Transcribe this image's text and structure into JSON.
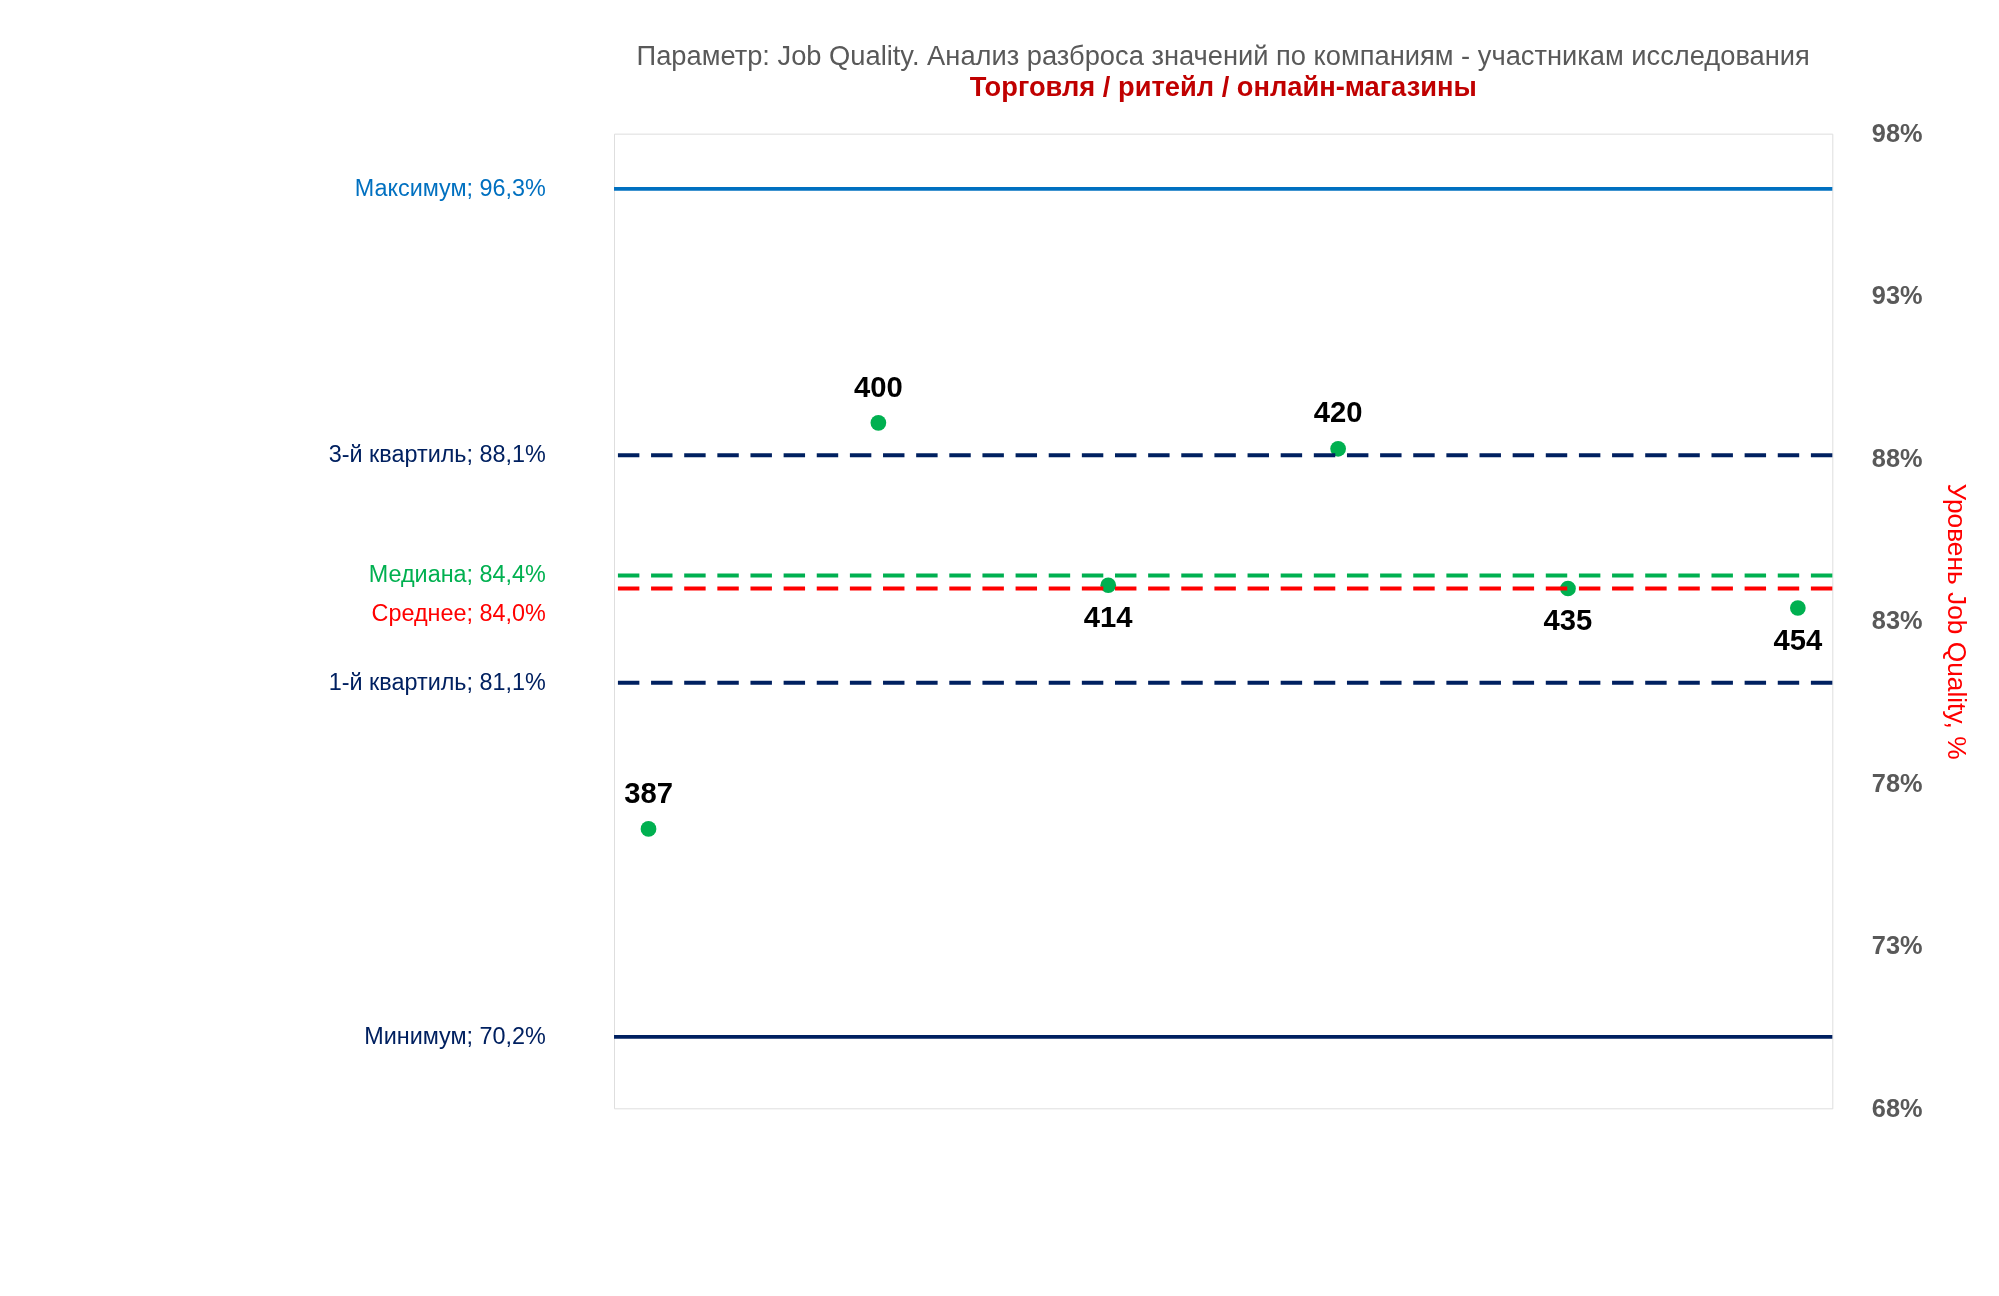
{
  "chart_data": {
    "type": "scatter",
    "title": "Параметр: Job Quality. Анализ разброса значений по компаниям - участникам исследования",
    "subtitle": "Торговля / ритейл / онлайн-магазины",
    "y2label": "Уровень Job Quality, %",
    "categories": [
      null,
      null,
      null,
      null,
      null,
      null
    ],
    "series": [
      {
        "color": "#00b050",
        "axis": "y2",
        "values": [
          76.6,
          89.1,
          84.1,
          88.3,
          84.0,
          83.4
        ]
      }
    ],
    "annotations": [
      "387",
      "400",
      "414",
      "420",
      "435",
      "454"
    ],
    "y2lim": [
      68,
      98
    ],
    "y2ticks": [
      {
        "value": 68,
        "label": "68%"
      },
      {
        "value": 73,
        "label": "73%"
      },
      {
        "value": 78,
        "label": "78%"
      },
      {
        "value": 83,
        "label": "83%"
      },
      {
        "value": 88,
        "label": "88%"
      },
      {
        "value": 93,
        "label": "93%"
      },
      {
        "value": 98,
        "label": "98%"
      }
    ],
    "ref_lines": [
      {
        "axis": "y2",
        "value": 96.3,
        "label": "Максимум;  96,3%",
        "color": "#0070c0",
        "line_style": "solid"
      },
      {
        "axis": "y2",
        "value": 88.1,
        "label": "3-й квартиль;  88,1%",
        "color": "#002060",
        "line_style": "dashed"
      },
      {
        "axis": "y2",
        "value": 84.4,
        "label": "Медиана; 84,4%",
        "color": "#00b050",
        "line_style": "dashed"
      },
      {
        "axis": "y2",
        "value": 84.0,
        "label": "Среднее;  84,0%",
        "color": "#ff0000",
        "line_style": "dashed"
      },
      {
        "axis": "y2",
        "value": 81.1,
        "label": "1-й квартиль;  81,1%",
        "color": "#002060",
        "line_style": "dashed"
      },
      {
        "axis": "y2",
        "value": 70.2,
        "label": "Минимум;  70,2%",
        "color": "#002060",
        "line_style": "solid"
      }
    ],
    "tick_labels": "y",
    "grid": false,
    "marker": "circle"
  }
}
